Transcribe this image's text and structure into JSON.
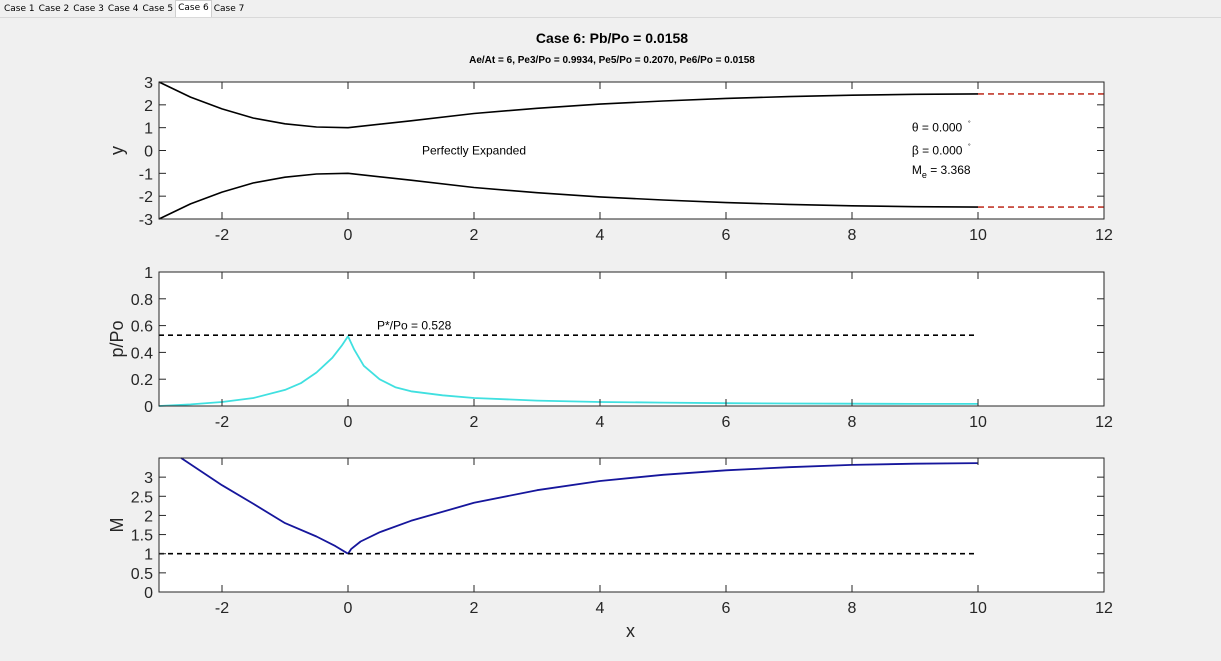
{
  "tabs": [
    "Case 1",
    "Case 2",
    "Case 3",
    "Case 4",
    "Case 5",
    "Case 6",
    "Case 7"
  ],
  "active_tab": 5,
  "title": "Case 6: Pb/Po = 0.0158",
  "subtitle": "Ae/At = 6, Pe3/Po = 0.9934, Pe5/Po = 0.2070, Pe6/Po = 0.0158",
  "colors": {
    "nozzle": "#000000",
    "jet": "#c0392b",
    "pressure": "#40e0e0",
    "mach": "#16169c",
    "ref": "#000000"
  },
  "chart_data": [
    {
      "type": "line",
      "ylabel": "y",
      "xlim": [
        -3,
        12
      ],
      "ylim": [
        -3,
        3
      ],
      "xticks": [
        "-2",
        "0",
        "2",
        "4",
        "6",
        "8",
        "10",
        "12"
      ],
      "yticks": [
        "-3",
        "-2",
        "-1",
        "0",
        "1",
        "2",
        "3"
      ],
      "series": [
        {
          "x": [
            -3,
            -2.5,
            -2,
            -1.5,
            -1,
            -0.5,
            0,
            1,
            2,
            3,
            4,
            5,
            6,
            7,
            8,
            9,
            10
          ],
          "y": [
            3.0,
            2.34,
            1.82,
            1.42,
            1.17,
            1.03,
            1.0,
            1.3,
            1.62,
            1.85,
            2.03,
            2.17,
            2.28,
            2.36,
            2.42,
            2.46,
            2.48
          ]
        },
        {
          "x": [
            -3,
            -2.5,
            -2,
            -1.5,
            -1,
            -0.5,
            0,
            1,
            2,
            3,
            4,
            5,
            6,
            7,
            8,
            9,
            10
          ],
          "y": [
            -3.0,
            -2.34,
            -1.82,
            -1.42,
            -1.17,
            -1.03,
            -1.0,
            -1.3,
            -1.62,
            -1.85,
            -2.03,
            -2.17,
            -2.28,
            -2.36,
            -2.42,
            -2.46,
            -2.48
          ]
        },
        {
          "x": [
            10,
            12
          ],
          "y": [
            2.48,
            2.48
          ]
        },
        {
          "x": [
            10,
            12
          ],
          "y": [
            -2.48,
            -2.48
          ]
        }
      ],
      "annotations": {
        "label": "Perfectly Expanded",
        "theta": "θ = 0.000",
        "beta": "β = 0.000",
        "mach_prefix": "M",
        "mach_sub": "e",
        "mach_value": " = 3.368",
        "degree": "°"
      }
    },
    {
      "type": "line",
      "ylabel": "p/Po",
      "xlim": [
        -3,
        12
      ],
      "ylim": [
        0,
        1
      ],
      "xticks": [
        "-2",
        "0",
        "2",
        "4",
        "6",
        "8",
        "10",
        "12"
      ],
      "yticks": [
        "0",
        "0.2",
        "0.4",
        "0.6",
        "0.8",
        "1"
      ],
      "series": [
        {
          "x": [
            -3,
            -2.5,
            -2,
            -1.5,
            -1,
            -0.75,
            -0.5,
            -0.25,
            -0.1,
            0,
            0.1,
            0.25,
            0.5,
            0.75,
            1,
            1.5,
            2,
            3,
            4,
            5,
            6,
            7,
            8,
            9,
            10
          ],
          "y": [
            0.0,
            0.012,
            0.03,
            0.06,
            0.12,
            0.17,
            0.25,
            0.36,
            0.45,
            0.52,
            0.42,
            0.3,
            0.2,
            0.14,
            0.11,
            0.08,
            0.06,
            0.04,
            0.03,
            0.025,
            0.021,
            0.019,
            0.017,
            0.016,
            0.0158
          ]
        },
        {
          "x": [
            -3,
            10
          ],
          "y": [
            0.528,
            0.528
          ]
        }
      ],
      "annotations": {
        "label": "P*/Po = 0.528"
      }
    },
    {
      "type": "line",
      "ylabel": "M",
      "xlabel": "x",
      "xlim": [
        -3,
        12
      ],
      "ylim": [
        0,
        3.5
      ],
      "xticks": [
        "-2",
        "0",
        "2",
        "4",
        "6",
        "8",
        "10",
        "12"
      ],
      "yticks": [
        "0",
        "0.5",
        "1",
        "1.5",
        "2",
        "2.5",
        "3"
      ],
      "series": [
        {
          "x": [
            -2.65,
            -2,
            -1.5,
            -1,
            -0.5,
            -0.2,
            0
          ],
          "y": [
            3.5,
            2.79,
            2.3,
            1.8,
            1.45,
            1.2,
            1.0
          ]
        },
        {
          "x": [
            0,
            0.05,
            0.2,
            0.5,
            1,
            2,
            3,
            4,
            5,
            6,
            7,
            8,
            9,
            10
          ],
          "y": [
            1.0,
            1.12,
            1.32,
            1.56,
            1.86,
            2.33,
            2.66,
            2.9,
            3.06,
            3.18,
            3.26,
            3.32,
            3.35,
            3.368
          ]
        },
        {
          "x": [
            -3,
            10
          ],
          "y": [
            1,
            1
          ]
        }
      ]
    }
  ]
}
